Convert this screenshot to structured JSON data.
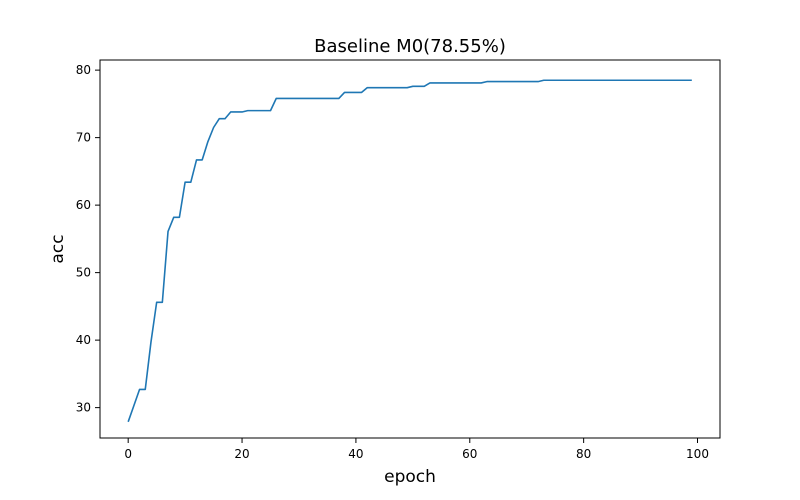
{
  "chart_data": {
    "type": "line",
    "title": "Baseline M0(78.55%)",
    "xlabel": "epoch",
    "ylabel": "acc",
    "xlim": [
      -4.95,
      103.95
    ],
    "ylim": [
      25.5,
      81.5
    ],
    "xticks": [
      0,
      20,
      40,
      60,
      80,
      100
    ],
    "yticks": [
      30,
      40,
      50,
      60,
      70,
      80
    ],
    "grid": false,
    "color": "#1f77b4",
    "x": [
      0,
      1,
      2,
      3,
      4,
      5,
      6,
      7,
      8,
      9,
      10,
      11,
      12,
      13,
      14,
      15,
      16,
      17,
      18,
      19,
      20,
      21,
      22,
      23,
      24,
      25,
      26,
      27,
      28,
      29,
      30,
      31,
      32,
      33,
      34,
      35,
      36,
      37,
      38,
      39,
      40,
      41,
      42,
      43,
      44,
      45,
      46,
      47,
      48,
      49,
      50,
      51,
      52,
      53,
      54,
      55,
      56,
      57,
      58,
      59,
      60,
      61,
      62,
      63,
      64,
      65,
      66,
      67,
      68,
      69,
      70,
      71,
      72,
      73,
      74,
      75,
      76,
      77,
      78,
      79,
      80,
      81,
      82,
      83,
      84,
      85,
      86,
      87,
      88,
      89,
      90,
      91,
      92,
      93,
      94,
      95,
      96,
      97,
      98,
      99
    ],
    "y": [
      27.9,
      30.3,
      32.7,
      32.7,
      39.7,
      45.6,
      45.6,
      56.1,
      58.2,
      58.2,
      63.4,
      63.4,
      66.7,
      66.7,
      69.4,
      71.5,
      72.8,
      72.8,
      73.8,
      73.8,
      73.8,
      74.0,
      74.0,
      74.0,
      74.0,
      74.0,
      75.8,
      75.8,
      75.8,
      75.8,
      75.8,
      75.8,
      75.8,
      75.8,
      75.8,
      75.8,
      75.8,
      75.8,
      76.7,
      76.7,
      76.7,
      76.7,
      77.4,
      77.4,
      77.4,
      77.4,
      77.4,
      77.4,
      77.4,
      77.4,
      77.6,
      77.6,
      77.6,
      78.1,
      78.1,
      78.1,
      78.1,
      78.1,
      78.1,
      78.1,
      78.1,
      78.1,
      78.1,
      78.3,
      78.3,
      78.3,
      78.3,
      78.3,
      78.3,
      78.3,
      78.3,
      78.3,
      78.3,
      78.5,
      78.5,
      78.5,
      78.5,
      78.5,
      78.5,
      78.5,
      78.5,
      78.5,
      78.5,
      78.5,
      78.5,
      78.5,
      78.5,
      78.5,
      78.5,
      78.5,
      78.5,
      78.5,
      78.5,
      78.5,
      78.5,
      78.5,
      78.5,
      78.5,
      78.5,
      78.5
    ]
  }
}
